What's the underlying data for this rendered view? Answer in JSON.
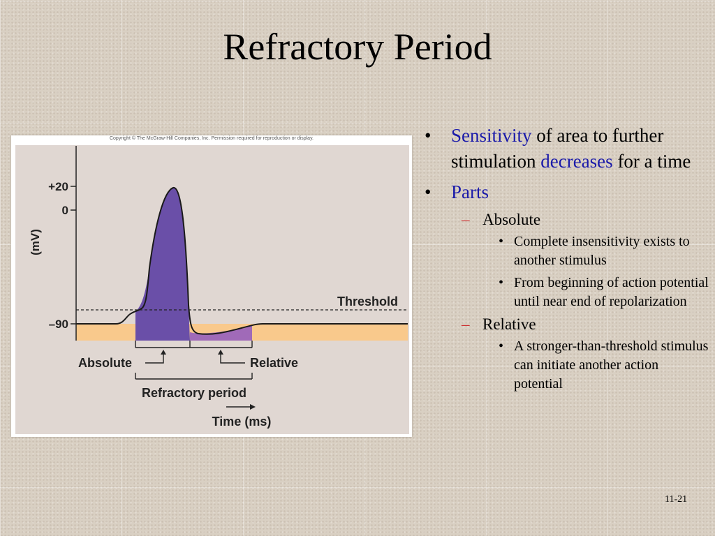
{
  "slide": {
    "title": "Refractory Period",
    "page_number": "11-21"
  },
  "figure": {
    "copyright": "Copyright © The McGraw-Hill Companies, Inc. Permission required for reproduction or display.",
    "y_ticks": [
      "+20",
      "0",
      "–90"
    ],
    "y_axis_label": "(mV)",
    "threshold_label": "Threshold",
    "absolute_label": "Absolute",
    "relative_label": "Relative",
    "refractory_label": "Refractory period",
    "x_axis_label": "Time (ms)",
    "colors": {
      "resting": "#f9c98c",
      "absolute": "#6a4fa8",
      "relative": "#a06ab8",
      "plot_bg": "#e0d7d2"
    }
  },
  "bullets": {
    "b1": {
      "part1": "Sensitivity",
      "part2": " of area to further stimulation ",
      "part3": "decreases",
      "part4": " for a time"
    },
    "b2": {
      "text": "Parts"
    },
    "absolute": {
      "label": "Absolute",
      "items": [
        "Complete insensitivity exists to another stimulus",
        "From beginning of action potential until near end of repolarization"
      ]
    },
    "relative": {
      "label": "Relative",
      "items": [
        "A stronger-than-threshold stimulus can initiate another action potential"
      ]
    },
    "dot": "•",
    "dash": "–"
  }
}
